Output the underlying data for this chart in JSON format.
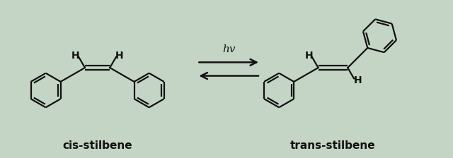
{
  "bg_color": "#c5d5c5",
  "line_color": "#111111",
  "label_cis": "cis-stilbene",
  "label_trans": "trans-stilbene",
  "arrow_label": "hv",
  "figsize": [
    6.4,
    2.24
  ],
  "dpi": 100,
  "line_width": 1.6,
  "font_size_labels": 11,
  "font_size_hv": 11,
  "font_size_H": 10
}
